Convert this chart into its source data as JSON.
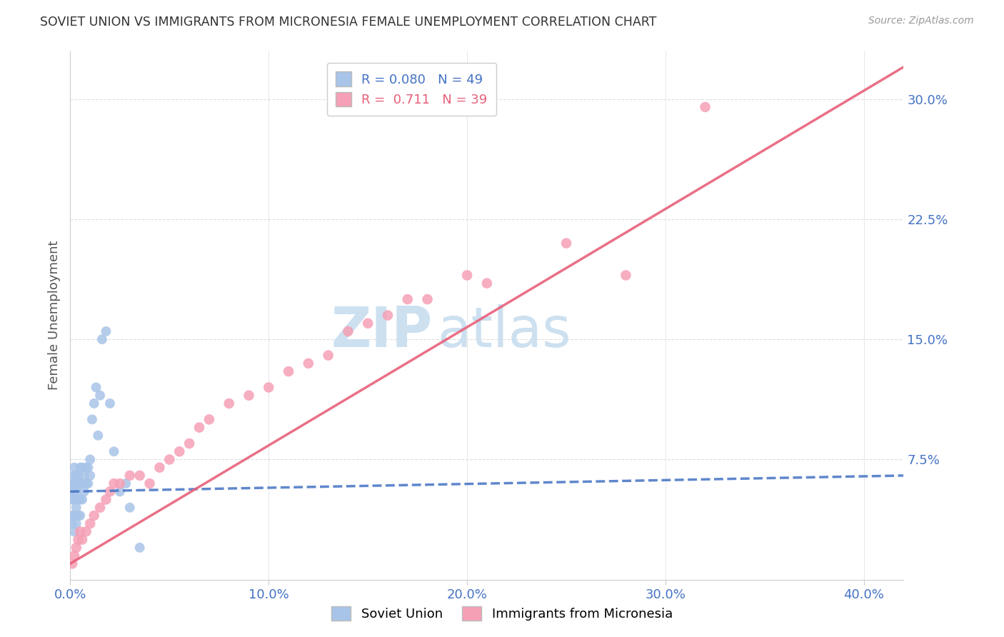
{
  "title": "SOVIET UNION VS IMMIGRANTS FROM MICRONESIA FEMALE UNEMPLOYMENT CORRELATION CHART",
  "source_text": "Source: ZipAtlas.com",
  "ylabel": "Female Unemployment",
  "x_tick_labels": [
    "0.0%",
    "10.0%",
    "20.0%",
    "30.0%",
    "40.0%"
  ],
  "x_tick_vals": [
    0.0,
    0.1,
    0.2,
    0.3,
    0.4
  ],
  "y_tick_labels": [
    "7.5%",
    "15.0%",
    "22.5%",
    "30.0%"
  ],
  "y_tick_vals": [
    0.075,
    0.15,
    0.225,
    0.3
  ],
  "xlim": [
    0.0,
    0.42
  ],
  "ylim": [
    0.0,
    0.33
  ],
  "legend_R1": "R = 0.080",
  "legend_N1": "N = 49",
  "legend_R2": "R =  0.711",
  "legend_N2": "N = 39",
  "series1_label": "Soviet Union",
  "series2_label": "Immigrants from Micronesia",
  "color1": "#a8c4e8",
  "color2": "#f5a0b5",
  "trendline1_color": "#4472c4",
  "trendline2_color": "#e8607a",
  "watermark_zip": "ZIP",
  "watermark_atlas": "atlas",
  "watermark_color": "#cce0f0",
  "background_color": "#ffffff",
  "grid_color": "#dddddd",
  "axis_label_color": "#4472c4",
  "title_color": "#333333",
  "soviet_x": [
    0.001,
    0.001,
    0.001,
    0.001,
    0.001,
    0.002,
    0.002,
    0.002,
    0.002,
    0.002,
    0.002,
    0.002,
    0.003,
    0.003,
    0.003,
    0.003,
    0.003,
    0.004,
    0.004,
    0.004,
    0.004,
    0.005,
    0.005,
    0.005,
    0.005,
    0.006,
    0.006,
    0.006,
    0.007,
    0.007,
    0.008,
    0.008,
    0.009,
    0.009,
    0.01,
    0.01,
    0.011,
    0.012,
    0.013,
    0.014,
    0.015,
    0.016,
    0.018,
    0.02,
    0.022,
    0.025,
    0.028,
    0.03,
    0.035
  ],
  "soviet_y": [
    0.035,
    0.04,
    0.05,
    0.055,
    0.06,
    0.03,
    0.04,
    0.05,
    0.055,
    0.06,
    0.065,
    0.07,
    0.035,
    0.045,
    0.055,
    0.06,
    0.065,
    0.04,
    0.05,
    0.06,
    0.065,
    0.04,
    0.05,
    0.06,
    0.07,
    0.05,
    0.06,
    0.07,
    0.055,
    0.065,
    0.06,
    0.07,
    0.06,
    0.07,
    0.065,
    0.075,
    0.1,
    0.11,
    0.12,
    0.09,
    0.115,
    0.15,
    0.155,
    0.11,
    0.08,
    0.055,
    0.06,
    0.045,
    0.02
  ],
  "micro_x": [
    0.001,
    0.002,
    0.003,
    0.004,
    0.005,
    0.006,
    0.008,
    0.01,
    0.012,
    0.015,
    0.018,
    0.02,
    0.022,
    0.025,
    0.03,
    0.035,
    0.04,
    0.045,
    0.05,
    0.055,
    0.06,
    0.065,
    0.07,
    0.08,
    0.09,
    0.1,
    0.11,
    0.12,
    0.13,
    0.14,
    0.15,
    0.16,
    0.17,
    0.18,
    0.2,
    0.21,
    0.25,
    0.28,
    0.32
  ],
  "micro_y": [
    0.01,
    0.015,
    0.02,
    0.025,
    0.03,
    0.025,
    0.03,
    0.035,
    0.04,
    0.045,
    0.05,
    0.055,
    0.06,
    0.06,
    0.065,
    0.065,
    0.06,
    0.07,
    0.075,
    0.08,
    0.085,
    0.095,
    0.1,
    0.11,
    0.115,
    0.12,
    0.13,
    0.135,
    0.14,
    0.155,
    0.16,
    0.165,
    0.175,
    0.175,
    0.19,
    0.185,
    0.21,
    0.19,
    0.295
  ],
  "trendline1_x0": 0.0,
  "trendline1_x1": 0.42,
  "trendline1_y0": 0.055,
  "trendline1_y1": 0.065,
  "trendline2_x0": 0.0,
  "trendline2_x1": 0.42,
  "trendline2_y0": 0.01,
  "trendline2_y1": 0.32
}
